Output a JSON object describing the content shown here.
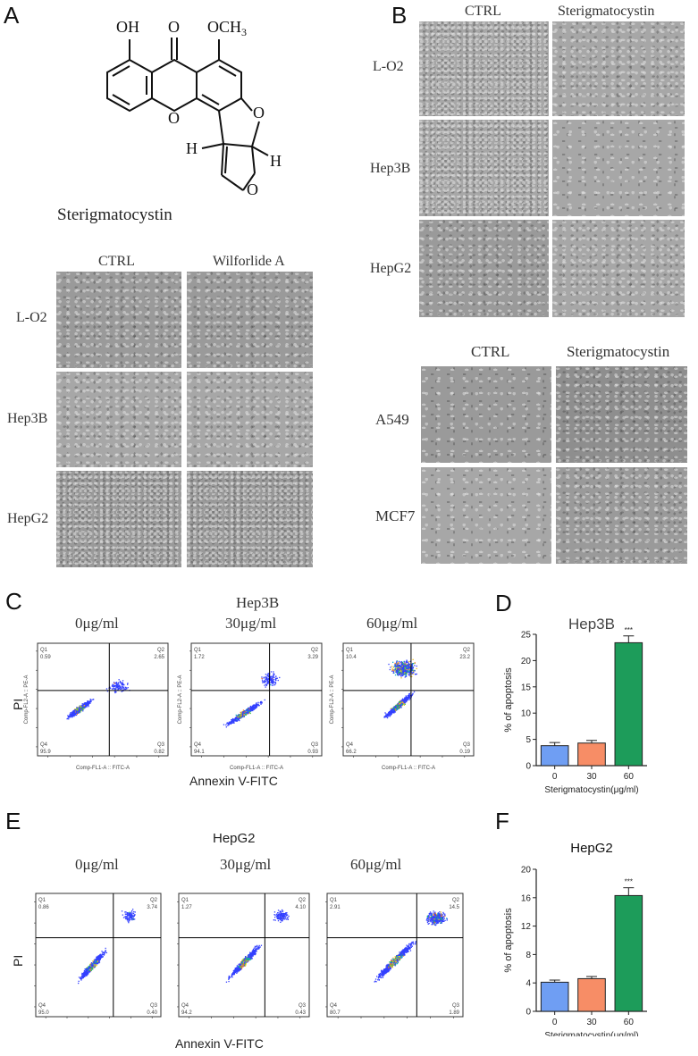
{
  "panels": {
    "A": "A",
    "B": "B",
    "C": "C",
    "D": "D",
    "E": "E",
    "F": "F"
  },
  "structure": {
    "name": "Sterigmatocystin",
    "oh": "OH",
    "o_keto": "O",
    "och3": "OCH",
    "och3_sub": "3",
    "ring_o1": "O",
    "ring_o2": "O",
    "ring_o3": "O",
    "h_left": "H",
    "h_right": "H"
  },
  "panelA_micro": {
    "col_headers": [
      "CTRL",
      "Wilforlide A"
    ],
    "rows": [
      "L-O2",
      "Hep3B",
      "HepG2"
    ]
  },
  "panelB_micro": {
    "col_headers": [
      "CTRL",
      "Sterigmatocystin"
    ],
    "rows": [
      "L-O2",
      "Hep3B",
      "HepG2"
    ]
  },
  "panelB_micro2": {
    "col_headers": [
      "CTRL",
      "Sterigmatocystin"
    ],
    "rows": [
      "A549",
      "MCF7"
    ]
  },
  "panelC": {
    "cell_line": "Hep3B",
    "doses": [
      "0μg/ml",
      "30μg/ml",
      "60μg/ml"
    ],
    "ylabel": "PI",
    "xlabel": "Annexin V-FITC",
    "inner_ylabel": "Comp-FL2-A :: PE-A",
    "inner_xlabel": "Comp-FL1-A :: FITC-A",
    "plots": [
      {
        "Q1": "Q1",
        "q1": "0.59",
        "Q2": "Q2",
        "q2": "2.65",
        "Q3": "Q3",
        "q3": "0.82",
        "Q4": "Q4",
        "q4": "95.9"
      },
      {
        "Q1": "Q1",
        "q1": "1.72",
        "Q2": "Q2",
        "q2": "3.29",
        "Q3": "Q3",
        "q3": "0.93",
        "Q4": "Q4",
        "q4": "94.1"
      },
      {
        "Q1": "Q1",
        "q1": "10.4",
        "Q2": "Q2",
        "q2": "23.2",
        "Q3": "Q3",
        "q3": "0.19",
        "Q4": "Q4",
        "q4": "66.2"
      }
    ]
  },
  "panelE": {
    "cell_line": "HepG2",
    "doses": [
      "0μg/ml",
      "30μg/ml",
      "60μg/ml"
    ],
    "ylabel": "PI",
    "xlabel": "Annexin V-FITC",
    "plots": [
      {
        "Q1": "Q1",
        "q1": "0.86",
        "Q2": "Q2",
        "q2": "3.74",
        "Q3": "Q3",
        "q3": "0.40",
        "Q4": "Q4",
        "q4": "95.0"
      },
      {
        "Q1": "Q1",
        "q1": "1.27",
        "Q2": "Q2",
        "q2": "4.10",
        "Q3": "Q3",
        "q3": "0.43",
        "Q4": "Q4",
        "q4": "94.2"
      },
      {
        "Q1": "Q1",
        "q1": "2.91",
        "Q2": "Q2",
        "q2": "14.5",
        "Q3": "Q3",
        "q3": "1.89",
        "Q4": "Q4",
        "q4": "80.7"
      }
    ]
  },
  "chart_data": [
    {
      "type": "bar",
      "title": "Hep3B",
      "categories": [
        "0",
        "30",
        "60"
      ],
      "values": [
        3.8,
        4.3,
        23.4
      ],
      "errors": [
        0.6,
        0.5,
        1.3
      ],
      "colors": [
        "#6f9ef3",
        "#f78d66",
        "#1d9c5a"
      ],
      "ylabel": "% of apoptosis",
      "xlabel": "Sterigmatocystin(μg/ml)",
      "ylim": [
        0,
        25
      ],
      "yticks": [
        "0",
        "5",
        "10",
        "15",
        "20",
        "25"
      ],
      "annotation": "***"
    },
    {
      "type": "bar",
      "title": "HepG2",
      "categories": [
        "0",
        "30",
        "60"
      ],
      "values": [
        4.1,
        4.6,
        16.3
      ],
      "errors": [
        0.3,
        0.3,
        1.1
      ],
      "colors": [
        "#6f9ef3",
        "#f78d66",
        "#1d9c5a"
      ],
      "ylabel": "% of apoptosis",
      "xlabel": "Sterigmatocystin(μg/ml)",
      "ylim": [
        0,
        20
      ],
      "yticks": [
        "0",
        "4",
        "8",
        "12",
        "16",
        "20"
      ],
      "annotation": "***"
    }
  ]
}
